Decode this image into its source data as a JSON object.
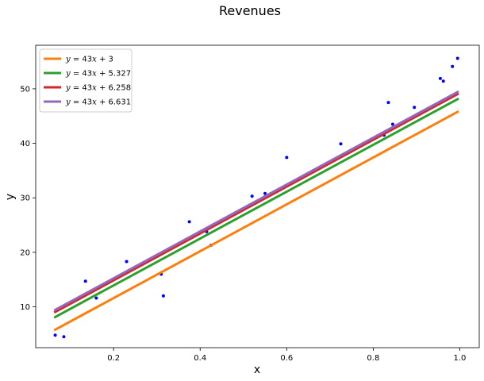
{
  "chart_data": {
    "type": "scatter",
    "title": "Revenues",
    "xlabel": "x",
    "ylabel": "y",
    "xlim": [
      0.02,
      1.045
    ],
    "ylim": [
      2.5,
      58.0
    ],
    "xticks": [
      0.2,
      0.4,
      0.6,
      0.8,
      1.0
    ],
    "xtick_labels": [
      "0.2",
      "0.4",
      "0.6",
      "0.8",
      "1.0"
    ],
    "yticks": [
      10,
      20,
      30,
      40,
      50
    ],
    "ytick_labels": [
      "10",
      "20",
      "30",
      "40",
      "50"
    ],
    "grid": false,
    "legend_position": "top-left",
    "points": {
      "color": "#0000ff",
      "x": [
        0.065,
        0.085,
        0.135,
        0.16,
        0.23,
        0.31,
        0.315,
        0.375,
        0.415,
        0.425,
        0.52,
        0.55,
        0.6,
        0.725,
        0.825,
        0.835,
        0.845,
        0.895,
        0.955,
        0.962,
        0.983,
        0.995
      ],
      "y": [
        4.8,
        4.5,
        14.7,
        11.6,
        18.3,
        16.0,
        12.0,
        25.6,
        23.8,
        21.3,
        30.3,
        30.8,
        37.4,
        39.9,
        41.5,
        47.5,
        43.5,
        46.6,
        51.9,
        51.4,
        54.1,
        55.6
      ]
    },
    "series": [
      {
        "name": "y = 43x + 3",
        "slope": 43,
        "intercept": 3,
        "color": "#ff7f0e",
        "x_range": [
          0.065,
          0.995
        ]
      },
      {
        "name": "y = 43x + 5.327",
        "slope": 43,
        "intercept": 5.327,
        "color": "#2ca02c",
        "x_range": [
          0.065,
          0.995
        ]
      },
      {
        "name": "y = 43x + 6.258",
        "slope": 43,
        "intercept": 6.258,
        "color": "#d62728",
        "x_range": [
          0.065,
          0.995
        ]
      },
      {
        "name": "y = 43x + 6.631",
        "slope": 43,
        "intercept": 6.631,
        "color": "#9467bd",
        "x_range": [
          0.065,
          0.995
        ]
      }
    ],
    "legend": [
      {
        "prefix": "y",
        "eq": " = 43",
        "var": "x",
        "suffix": " + 3"
      },
      {
        "prefix": "y",
        "eq": " = 43",
        "var": "x",
        "suffix": " + 5.327"
      },
      {
        "prefix": "y",
        "eq": " = 43",
        "var": "x",
        "suffix": " + 6.258"
      },
      {
        "prefix": "y",
        "eq": " = 43",
        "var": "x",
        "suffix": " + 6.631"
      }
    ]
  }
}
